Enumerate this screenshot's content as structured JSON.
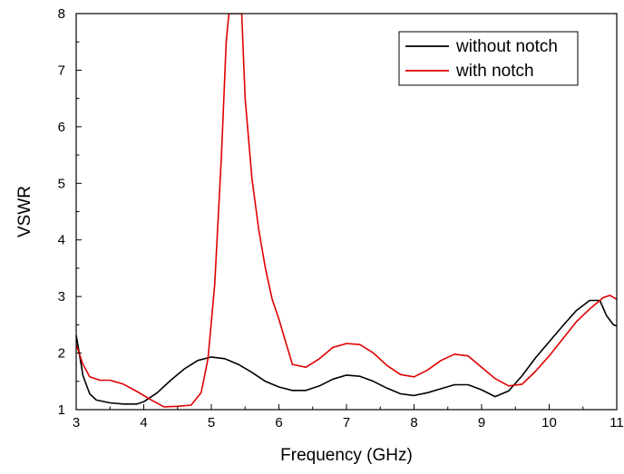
{
  "chart_data": {
    "type": "line",
    "xlabel": "Frequency (GHz)",
    "ylabel": "VSWR",
    "xlim": [
      3,
      11
    ],
    "ylim": [
      1,
      8
    ],
    "xticks": [
      "3",
      "4",
      "5",
      "6",
      "7",
      "8",
      "9",
      "10",
      "11"
    ],
    "yticks": [
      "1",
      "2",
      "3",
      "4",
      "5",
      "6",
      "7",
      "8"
    ],
    "grid": false,
    "legend_position": "top-right",
    "series": [
      {
        "name": "without notch",
        "color": "#000000",
        "x": [
          3.0,
          3.1,
          3.2,
          3.3,
          3.5,
          3.7,
          3.9,
          4.0,
          4.2,
          4.4,
          4.6,
          4.8,
          5.0,
          5.2,
          5.4,
          5.6,
          5.8,
          6.0,
          6.2,
          6.4,
          6.6,
          6.8,
          7.0,
          7.2,
          7.4,
          7.6,
          7.8,
          8.0,
          8.2,
          8.4,
          8.6,
          8.8,
          9.0,
          9.2,
          9.4,
          9.6,
          9.8,
          10.0,
          10.2,
          10.4,
          10.6,
          10.75,
          10.85,
          10.95,
          11.0
        ],
        "y": [
          2.32,
          1.6,
          1.28,
          1.17,
          1.12,
          1.1,
          1.1,
          1.14,
          1.3,
          1.52,
          1.72,
          1.87,
          1.93,
          1.9,
          1.8,
          1.66,
          1.5,
          1.4,
          1.34,
          1.34,
          1.42,
          1.54,
          1.61,
          1.59,
          1.5,
          1.38,
          1.28,
          1.25,
          1.3,
          1.37,
          1.44,
          1.44,
          1.35,
          1.23,
          1.33,
          1.6,
          1.92,
          2.2,
          2.48,
          2.75,
          2.93,
          2.93,
          2.66,
          2.5,
          2.48
        ]
      },
      {
        "name": "with notch",
        "color": "#e00000",
        "x": [
          3.0,
          3.1,
          3.2,
          3.35,
          3.5,
          3.7,
          3.9,
          4.1,
          4.3,
          4.5,
          4.7,
          4.85,
          4.95,
          5.05,
          5.15,
          5.22,
          5.26,
          5.45,
          5.5,
          5.6,
          5.7,
          5.8,
          5.9,
          6.0,
          6.1,
          6.2,
          6.4,
          6.6,
          6.8,
          7.0,
          7.2,
          7.4,
          7.6,
          7.8,
          8.0,
          8.2,
          8.4,
          8.6,
          8.8,
          9.0,
          9.2,
          9.4,
          9.6,
          9.8,
          10.0,
          10.2,
          10.4,
          10.6,
          10.8,
          10.9,
          11.0
        ],
        "y": [
          2.15,
          1.8,
          1.58,
          1.52,
          1.52,
          1.45,
          1.32,
          1.18,
          1.05,
          1.06,
          1.08,
          1.3,
          1.9,
          3.2,
          5.5,
          7.5,
          8.0,
          8.0,
          6.5,
          5.1,
          4.2,
          3.5,
          2.95,
          2.6,
          2.2,
          1.8,
          1.75,
          1.9,
          2.1,
          2.17,
          2.15,
          2.0,
          1.78,
          1.62,
          1.58,
          1.7,
          1.87,
          1.98,
          1.95,
          1.75,
          1.55,
          1.42,
          1.45,
          1.68,
          1.95,
          2.25,
          2.55,
          2.78,
          2.98,
          3.02,
          2.95
        ]
      }
    ]
  }
}
